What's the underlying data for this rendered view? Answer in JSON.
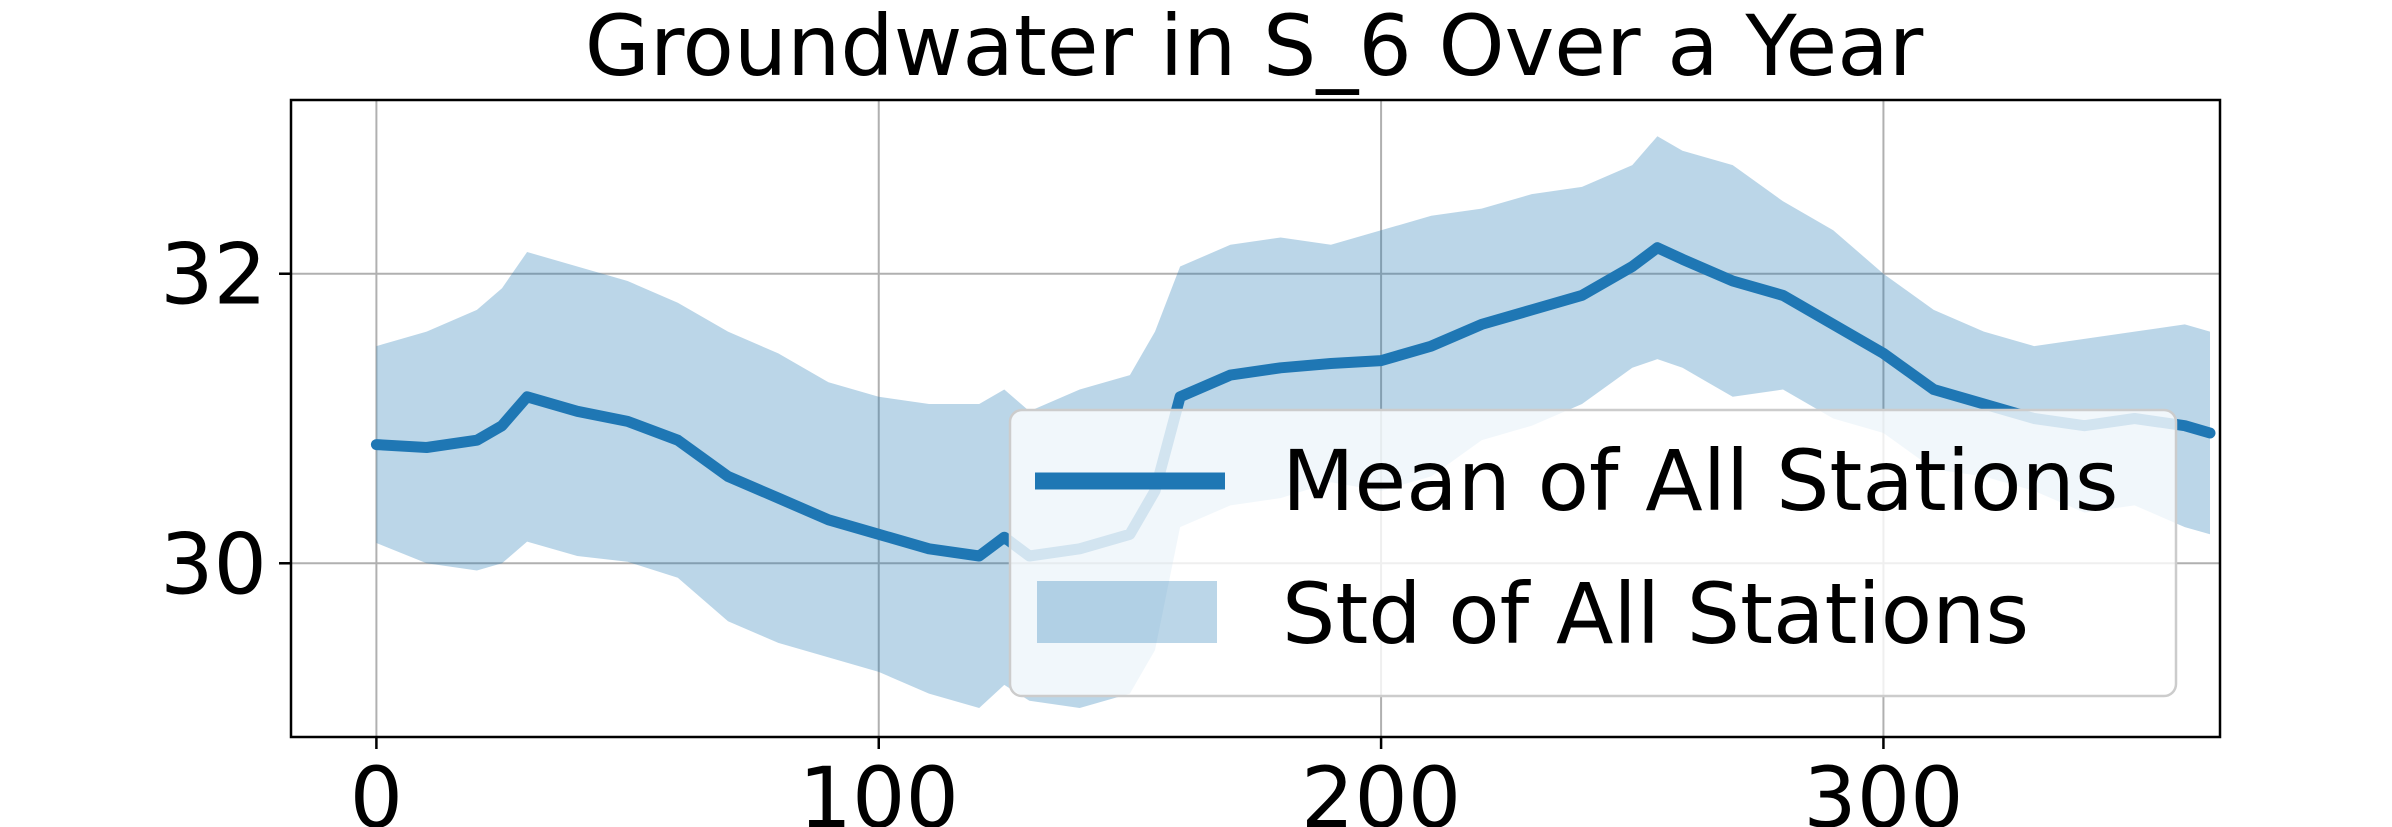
{
  "chart_data": {
    "type": "line",
    "title": "Groundwater in S_6 Over a Year",
    "xlabel": "",
    "ylabel": "",
    "xlim": [
      -17,
      367
    ],
    "ylim": [
      28.8,
      33.2
    ],
    "xticks": [
      0,
      100,
      200,
      300
    ],
    "xtick_labels": [
      "0",
      "100",
      "200",
      "300"
    ],
    "yticks": [
      30,
      32
    ],
    "ytick_labels": [
      "30",
      "32"
    ],
    "grid": true,
    "legend_position": "lower-right",
    "colors": {
      "line": "#1f77b4",
      "band": "#1f77b4",
      "band_opacity": 0.3
    },
    "series": [
      {
        "name": "Mean of All Stations",
        "kind": "line",
        "x": [
          0,
          10,
          20,
          25,
          30,
          40,
          50,
          60,
          70,
          80,
          90,
          100,
          110,
          120,
          125,
          130,
          140,
          150,
          155,
          160,
          170,
          180,
          190,
          200,
          210,
          220,
          230,
          240,
          250,
          255,
          260,
          270,
          280,
          290,
          300,
          310,
          320,
          330,
          340,
          350,
          360,
          365
        ],
        "y": [
          30.82,
          30.8,
          30.85,
          30.95,
          31.15,
          31.05,
          30.98,
          30.85,
          30.6,
          30.45,
          30.3,
          30.2,
          30.1,
          30.05,
          30.18,
          30.05,
          30.1,
          30.2,
          30.5,
          31.15,
          31.3,
          31.35,
          31.38,
          31.4,
          31.5,
          31.65,
          31.75,
          31.85,
          32.05,
          32.18,
          32.1,
          31.95,
          31.85,
          31.65,
          31.45,
          31.2,
          31.1,
          31.0,
          30.95,
          31.0,
          30.95,
          30.9
        ]
      },
      {
        "name": "Std of All Stations",
        "kind": "band",
        "x": [
          0,
          10,
          20,
          25,
          30,
          40,
          50,
          60,
          70,
          80,
          90,
          100,
          110,
          120,
          125,
          130,
          140,
          150,
          155,
          160,
          170,
          180,
          190,
          200,
          210,
          220,
          230,
          240,
          250,
          255,
          260,
          270,
          280,
          290,
          300,
          310,
          320,
          330,
          340,
          350,
          360,
          365
        ],
        "upper": [
          31.5,
          31.6,
          31.75,
          31.9,
          32.15,
          32.05,
          31.95,
          31.8,
          31.6,
          31.45,
          31.25,
          31.15,
          31.1,
          31.1,
          31.2,
          31.05,
          31.2,
          31.3,
          31.6,
          32.05,
          32.2,
          32.25,
          32.2,
          32.3,
          32.4,
          32.45,
          32.55,
          32.6,
          32.75,
          32.95,
          32.85,
          32.75,
          32.5,
          32.3,
          32.0,
          31.75,
          31.6,
          31.5,
          31.55,
          31.6,
          31.65,
          31.6
        ]
      }
    ]
  }
}
